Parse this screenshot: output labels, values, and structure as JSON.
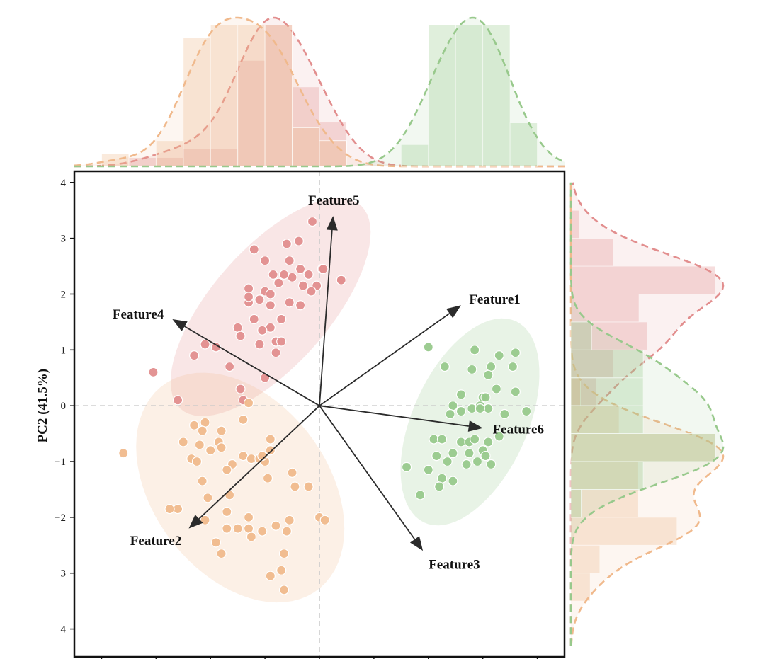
{
  "chart_data": {
    "type": "scatter",
    "title": "",
    "xlabel": "",
    "ylabel": "PC2 (41.5%)",
    "xlim": [
      -4.5,
      4.5
    ],
    "ylim": [
      -4.5,
      4.2
    ],
    "yticks": [
      4,
      3,
      2,
      1,
      0,
      -1,
      -2,
      -3,
      -4
    ],
    "ytick_labels": [
      "4",
      "3",
      "2",
      "1",
      "0",
      "−1",
      "−2",
      "−3",
      "−4"
    ],
    "grid": false,
    "zero_lines": true,
    "marginal_plots": [
      "top-histogram-kde",
      "right-histogram-kde"
    ],
    "series": [
      {
        "color": "#e28e8e",
        "values": [
          [
            -0.13,
            3.3
          ],
          [
            -0.6,
            2.9
          ],
          [
            -0.38,
            2.95
          ],
          [
            -1.2,
            2.8
          ],
          [
            -1.0,
            2.6
          ],
          [
            -0.55,
            2.6
          ],
          [
            -0.35,
            2.45
          ],
          [
            -0.5,
            2.3
          ],
          [
            -0.2,
            2.35
          ],
          [
            0.05,
            2.45
          ],
          [
            -0.65,
            2.35
          ],
          [
            -0.85,
            2.35
          ],
          [
            -0.75,
            2.2
          ],
          [
            -0.3,
            2.15
          ],
          [
            -0.05,
            2.15
          ],
          [
            -0.15,
            2.05
          ],
          [
            -1.0,
            2.05
          ],
          [
            -1.3,
            2.1
          ],
          [
            -1.1,
            1.9
          ],
          [
            -1.3,
            1.85
          ],
          [
            -1.2,
            1.55
          ],
          [
            -0.9,
            1.8
          ],
          [
            -0.55,
            1.85
          ],
          [
            -0.35,
            1.8
          ],
          [
            -0.7,
            1.55
          ],
          [
            -0.9,
            1.4
          ],
          [
            -1.05,
            1.35
          ],
          [
            -0.8,
            1.15
          ],
          [
            -1.1,
            1.1
          ],
          [
            -0.8,
            0.95
          ],
          [
            -1.5,
            1.4
          ],
          [
            -1.45,
            1.25
          ],
          [
            -1.9,
            1.05
          ],
          [
            -2.1,
            1.1
          ],
          [
            -2.3,
            0.9
          ],
          [
            -1.65,
            0.7
          ],
          [
            -1.45,
            0.3
          ],
          [
            -1.4,
            0.1
          ],
          [
            -2.6,
            0.1
          ],
          [
            -3.05,
            0.6
          ],
          [
            -1.0,
            0.5
          ],
          [
            -0.7,
            1.15
          ],
          [
            0.05,
            2.45
          ],
          [
            0.4,
            2.25
          ],
          [
            0.07,
            2.45
          ],
          [
            0.4,
            2.25
          ],
          [
            -0.9,
            2.0
          ],
          [
            -1.3,
            1.95
          ]
        ],
        "label_names": []
      },
      {
        "color": "#f0b98c",
        "values": [
          [
            -1.3,
            0.05
          ],
          [
            -2.1,
            -0.3
          ],
          [
            -1.4,
            -0.25
          ],
          [
            -1.8,
            -0.45
          ],
          [
            -2.3,
            -0.35
          ],
          [
            -2.5,
            -0.65
          ],
          [
            -2.2,
            -0.7
          ],
          [
            -1.85,
            -0.65
          ],
          [
            -2.35,
            -0.95
          ],
          [
            -2.0,
            -0.8
          ],
          [
            -1.8,
            -0.75
          ],
          [
            -2.25,
            -1.0
          ],
          [
            -1.4,
            -0.9
          ],
          [
            -1.6,
            -1.05
          ],
          [
            -1.25,
            -0.95
          ],
          [
            -1.1,
            -0.95
          ],
          [
            -1.0,
            -1.0
          ],
          [
            -1.05,
            -0.9
          ],
          [
            -0.9,
            -0.8
          ],
          [
            -0.9,
            -0.6
          ],
          [
            -0.95,
            -1.3
          ],
          [
            -0.5,
            -1.2
          ],
          [
            -0.45,
            -1.45
          ],
          [
            -1.7,
            -1.15
          ],
          [
            -2.15,
            -1.35
          ],
          [
            -2.05,
            -1.65
          ],
          [
            -1.65,
            -1.6
          ],
          [
            -1.7,
            -1.9
          ],
          [
            -2.6,
            -1.85
          ],
          [
            -2.75,
            -1.85
          ],
          [
            -2.1,
            -2.05
          ],
          [
            -1.7,
            -2.2
          ],
          [
            -1.5,
            -2.2
          ],
          [
            -1.3,
            -2.2
          ],
          [
            -1.05,
            -2.25
          ],
          [
            -1.25,
            -2.35
          ],
          [
            -0.8,
            -2.15
          ],
          [
            -0.55,
            -2.05
          ],
          [
            -0.6,
            -2.25
          ],
          [
            -1.3,
            -2.0
          ],
          [
            -1.9,
            -2.45
          ],
          [
            -1.8,
            -2.65
          ],
          [
            -0.65,
            -2.65
          ],
          [
            -0.7,
            -2.95
          ],
          [
            -0.9,
            -3.05
          ],
          [
            -0.65,
            -3.3
          ],
          [
            -2.15,
            -0.45
          ],
          [
            -3.6,
            -0.85
          ],
          [
            0.0,
            -2.0
          ],
          [
            0.1,
            -2.05
          ],
          [
            -0.2,
            -1.45
          ]
        ],
        "label_names": []
      },
      {
        "color": "#98c98c",
        "values": [
          [
            2.0,
            1.05
          ],
          [
            2.3,
            0.7
          ],
          [
            2.85,
            1.0
          ],
          [
            3.15,
            0.7
          ],
          [
            3.1,
            0.55
          ],
          [
            2.8,
            0.65
          ],
          [
            3.3,
            0.9
          ],
          [
            3.6,
            0.95
          ],
          [
            3.55,
            0.7
          ],
          [
            3.25,
            0.3
          ],
          [
            3.6,
            0.25
          ],
          [
            3.0,
            0.15
          ],
          [
            2.6,
            0.2
          ],
          [
            2.8,
            -0.05
          ],
          [
            2.45,
            0.0
          ],
          [
            2.6,
            -0.1
          ],
          [
            2.4,
            -0.15
          ],
          [
            3.1,
            -0.05
          ],
          [
            3.4,
            -0.15
          ],
          [
            3.8,
            -0.1
          ],
          [
            2.95,
            0.0
          ],
          [
            2.1,
            -0.6
          ],
          [
            2.25,
            -0.6
          ],
          [
            2.6,
            -0.65
          ],
          [
            2.75,
            -0.65
          ],
          [
            2.85,
            -0.6
          ],
          [
            3.1,
            -0.65
          ],
          [
            3.3,
            -0.55
          ],
          [
            3.0,
            -0.8
          ],
          [
            2.75,
            -0.85
          ],
          [
            2.45,
            -0.85
          ],
          [
            2.15,
            -0.9
          ],
          [
            2.35,
            -1.0
          ],
          [
            2.9,
            -1.0
          ],
          [
            3.05,
            -0.9
          ],
          [
            3.15,
            -1.05
          ],
          [
            2.7,
            -1.05
          ],
          [
            2.0,
            -1.15
          ],
          [
            2.25,
            -1.3
          ],
          [
            2.45,
            -1.35
          ],
          [
            2.2,
            -1.45
          ],
          [
            1.85,
            -1.6
          ],
          [
            1.6,
            -1.1
          ],
          [
            2.95,
            -0.05
          ],
          [
            3.05,
            0.15
          ]
        ],
        "label_names": []
      }
    ],
    "loadings": [
      {
        "name": "Feature1",
        "x": 2.6,
        "y": 1.8
      },
      {
        "name": "Feature2",
        "x": -2.4,
        "y": -2.2
      },
      {
        "name": "Feature3",
        "x": 1.9,
        "y": -2.6
      },
      {
        "name": "Feature4",
        "x": -2.7,
        "y": 1.55
      },
      {
        "name": "Feature5",
        "x": 0.25,
        "y": 3.4
      },
      {
        "name": "Feature6",
        "x": 3.0,
        "y": -0.4
      }
    ]
  }
}
